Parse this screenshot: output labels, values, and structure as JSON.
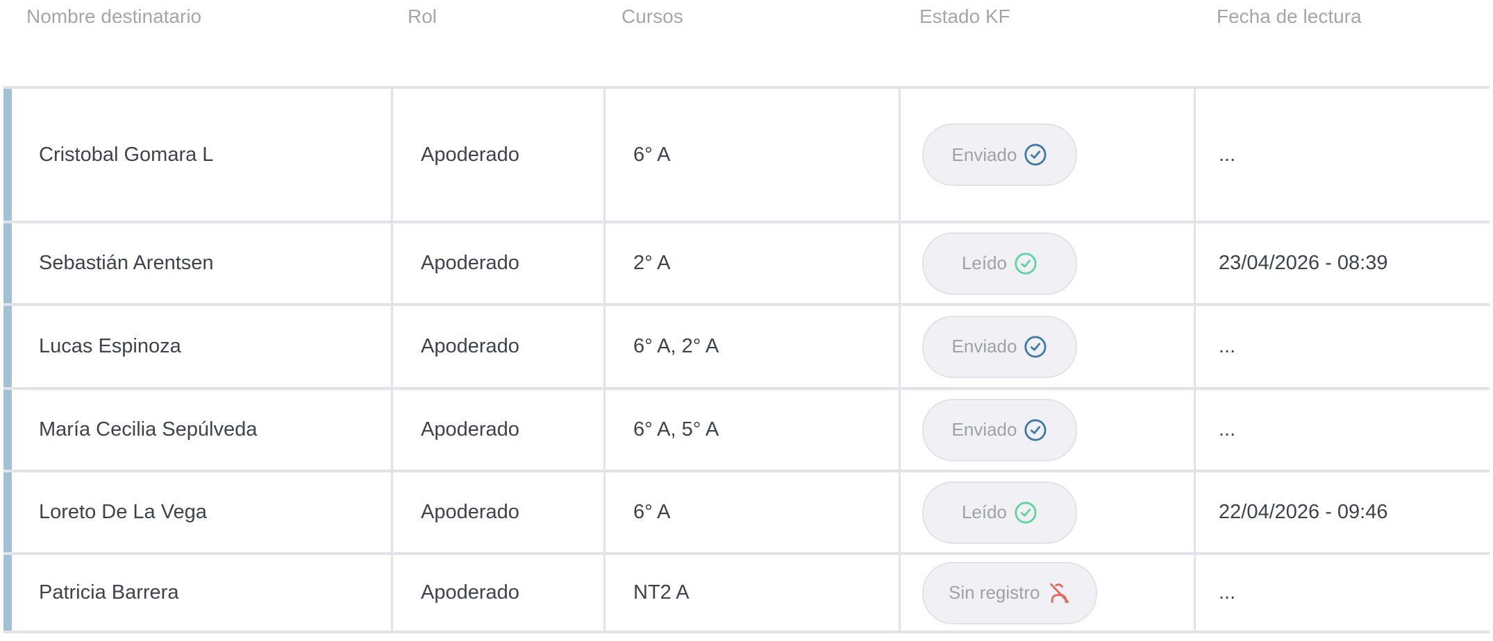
{
  "headers": {
    "name": "Nombre destinatario",
    "role": "Rol",
    "courses": "Cursos",
    "status": "Estado KF",
    "read_date": "Fecha de lectura"
  },
  "colors": {
    "accent": "#a3c1d6",
    "sent": "#3e7aa6",
    "read": "#5fd3a0",
    "none": "#e0685c"
  },
  "rows": [
    {
      "name": "Cristobal Gomara L",
      "role": "Apoderado",
      "courses": "6° A",
      "status": "Enviado",
      "status_icon": "check-circle-blue-icon",
      "read_date": "..."
    },
    {
      "name": "Sebastián Arentsen",
      "role": "Apoderado",
      "courses": "2° A",
      "status": "Leído",
      "status_icon": "check-circle-green-icon",
      "read_date": "23/04/2026 - 08:39"
    },
    {
      "name": "Lucas Espinoza",
      "role": "Apoderado",
      "courses": "6° A, 2° A",
      "status": "Enviado",
      "status_icon": "check-circle-blue-icon",
      "read_date": "..."
    },
    {
      "name": "María Cecilia Sepúlveda",
      "role": "Apoderado",
      "courses": "6° A, 5° A",
      "status": "Enviado",
      "status_icon": "check-circle-blue-icon",
      "read_date": "..."
    },
    {
      "name": "Loreto De La Vega",
      "role": "Apoderado",
      "courses": "6° A",
      "status": "Leído",
      "status_icon": "check-circle-green-icon",
      "read_date": "22/04/2026 - 09:46"
    },
    {
      "name": "Patricia Barrera",
      "role": "Apoderado",
      "courses": "NT2 A",
      "status": "Sin registro",
      "status_icon": "user-off-icon",
      "read_date": "..."
    }
  ]
}
